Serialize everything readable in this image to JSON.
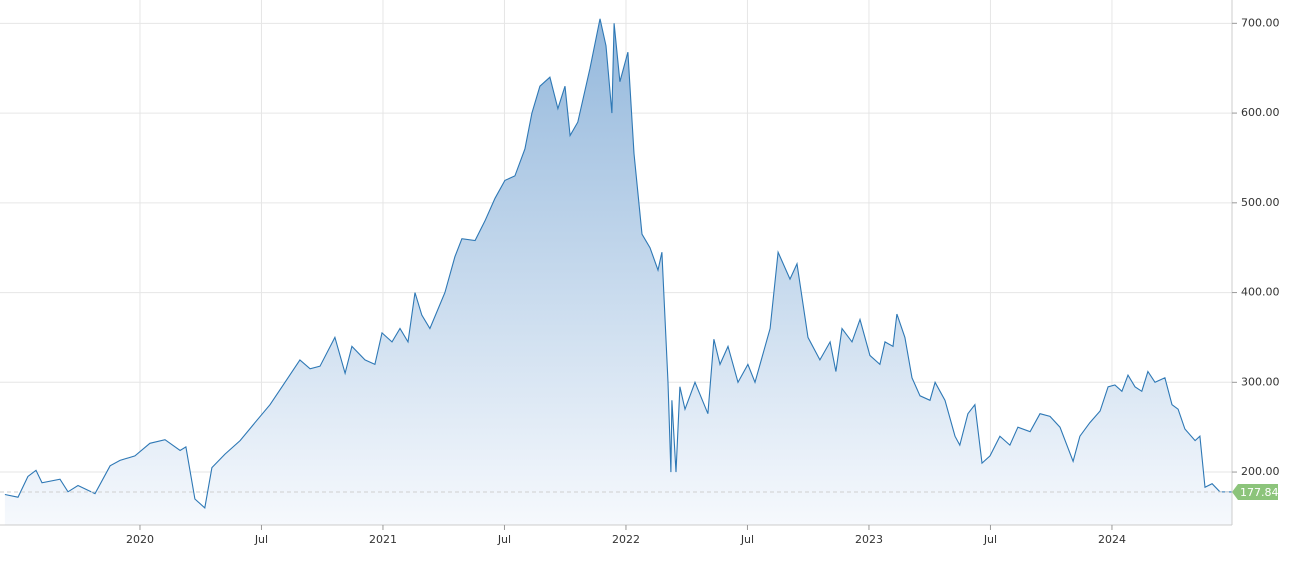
{
  "chart_data": {
    "type": "area",
    "x": [
      2019.444,
      2019.498,
      2019.539,
      2019.572,
      2019.597,
      2019.671,
      2019.704,
      2019.745,
      2019.815,
      2019.877,
      2019.918,
      2019.979,
      2020.041,
      2020.103,
      2020.165,
      2020.189,
      2020.226,
      2020.267,
      2020.296,
      2020.35,
      2020.412,
      2020.473,
      2020.535,
      2020.597,
      2020.658,
      2020.7,
      2020.741,
      2020.802,
      2020.844,
      2020.872,
      2020.926,
      2020.967,
      2020.996,
      2021.037,
      2021.07,
      2021.103,
      2021.132,
      2021.16,
      2021.193,
      2021.255,
      2021.296,
      2021.325,
      2021.379,
      2021.42,
      2021.461,
      2021.502,
      2021.543,
      2021.584,
      2021.613,
      2021.646,
      2021.687,
      2021.72,
      2021.749,
      2021.77,
      2021.802,
      2021.852,
      2021.893,
      2021.918,
      2021.942,
      2021.951,
      2021.975,
      2022.008,
      2022.033,
      2022.066,
      2022.099,
      2022.132,
      2022.148,
      2022.173,
      2022.185,
      2022.189,
      2022.206,
      2022.222,
      2022.243,
      2022.284,
      2022.337,
      2022.362,
      2022.387,
      2022.42,
      2022.461,
      2022.502,
      2022.531,
      2022.593,
      2022.626,
      2022.675,
      2022.704,
      2022.749,
      2022.798,
      2022.84,
      2022.864,
      2022.889,
      2022.93,
      2022.963,
      2023.004,
      2023.045,
      2023.066,
      2023.099,
      2023.115,
      2023.148,
      2023.177,
      2023.21,
      2023.251,
      2023.272,
      2023.313,
      2023.354,
      2023.374,
      2023.407,
      2023.436,
      2023.465,
      2023.498,
      2023.539,
      2023.58,
      2023.613,
      2023.663,
      2023.704,
      2023.745,
      2023.786,
      2023.84,
      2023.868,
      2023.909,
      2023.951,
      2023.984,
      2024.012,
      2024.041,
      2024.066,
      2024.095,
      2024.123,
      2024.148,
      2024.177,
      2024.218,
      2024.247,
      2024.272,
      2024.3,
      2024.342,
      2024.362,
      2024.383,
      2024.412,
      2024.444,
      2024.494
    ],
    "values": [
      175,
      172,
      195,
      202,
      188,
      192,
      178,
      185,
      176,
      207,
      213,
      218,
      232,
      236,
      224,
      228,
      170,
      160,
      205,
      220,
      235,
      255,
      275,
      300,
      325,
      315,
      318,
      350,
      310,
      340,
      325,
      320,
      355,
      345,
      360,
      345,
      400,
      375,
      360,
      400,
      440,
      460,
      458,
      480,
      505,
      525,
      530,
      560,
      600,
      630,
      640,
      605,
      630,
      575,
      590,
      650,
      705,
      675,
      600,
      700,
      635,
      668,
      555,
      465,
      450,
      425,
      445,
      300,
      200,
      280,
      200,
      295,
      270,
      300,
      265,
      348,
      320,
      340,
      300,
      320,
      300,
      360,
      445,
      415,
      432,
      350,
      325,
      345,
      312,
      360,
      345,
      370,
      330,
      320,
      345,
      340,
      376,
      350,
      305,
      285,
      280,
      300,
      280,
      240,
      230,
      265,
      275,
      210,
      218,
      240,
      230,
      250,
      245,
      265,
      262,
      250,
      212,
      240,
      255,
      268,
      295,
      297,
      290,
      308,
      295,
      290,
      312,
      300,
      305,
      275,
      270,
      248,
      235,
      240,
      183,
      187,
      178,
      177.84
    ],
    "color": "#2e78b5",
    "xlim": [
      2019.424,
      2024.494
    ],
    "xticks": [
      {
        "value": 2020,
        "label": "2020"
      },
      {
        "value": 2020.5,
        "label": "Jul"
      },
      {
        "value": 2021,
        "label": "2021"
      },
      {
        "value": 2021.5,
        "label": "Jul"
      },
      {
        "value": 2022,
        "label": "2022"
      },
      {
        "value": 2022.5,
        "label": "Jul"
      },
      {
        "value": 2023,
        "label": "2023"
      },
      {
        "value": 2023.5,
        "label": "Jul"
      },
      {
        "value": 2024,
        "label": "2024"
      }
    ],
    "ylim": [
      141,
      726
    ],
    "yticks": [
      {
        "value": 200,
        "label": "200.00"
      },
      {
        "value": 300,
        "label": "300.00"
      },
      {
        "value": 400,
        "label": "400.00"
      },
      {
        "value": 500,
        "label": "500.00"
      },
      {
        "value": 600,
        "label": "600.00"
      },
      {
        "value": 700,
        "label": "700.00"
      }
    ],
    "grid": true
  }
}
